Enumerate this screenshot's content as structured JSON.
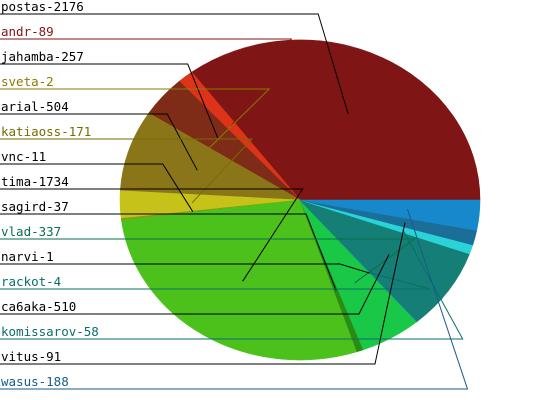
{
  "chart_data": {
    "type": "pie",
    "title": "",
    "slices": [
      {
        "name": "postas",
        "value": 2176,
        "label": "postas-2176",
        "color": "#7f1515",
        "label_color": "#000000"
      },
      {
        "name": "andr",
        "value": 89,
        "label": "andr-89",
        "color": "#dd3318",
        "label_color": "#7f1515"
      },
      {
        "name": "jahamba",
        "value": 257,
        "label": "jahamba-257",
        "color": "#7e2c18",
        "label_color": "#000000"
      },
      {
        "name": "sveta",
        "value": 2,
        "label": "sveta-2",
        "color": "#a8880a",
        "label_color": "#8c7a00"
      },
      {
        "name": "arial",
        "value": 504,
        "label": "arial-504",
        "color": "#8a7619",
        "label_color": "#000000"
      },
      {
        "name": "katiaoss",
        "value": 171,
        "label": "katiaoss-171",
        "color": "#c6c21a",
        "label_color": "#7a6a00"
      },
      {
        "name": "vnc",
        "value": 11,
        "label": "vnc-11",
        "color": "#8a9a10",
        "label_color": "#000000"
      },
      {
        "name": "tima",
        "value": 1734,
        "label": "tima-1734",
        "color": "#4cc11b",
        "label_color": "#000000"
      },
      {
        "name": "sagird",
        "value": 37,
        "label": "sagird-37",
        "color": "#2a8c14",
        "label_color": "#000000"
      },
      {
        "name": "vlad",
        "value": 337,
        "label": "vlad-337",
        "color": "#18c846",
        "label_color": "#0a6e4e"
      },
      {
        "name": "narvi",
        "value": 1,
        "label": "narvi-1",
        "color": "#0b9e7a",
        "label_color": "#000000"
      },
      {
        "name": "rackot",
        "value": 4,
        "label": "rackot-4",
        "color": "#1bb7a3",
        "label_color": "#0a6e6a"
      },
      {
        "name": "ca6aka",
        "value": 510,
        "label": "ca6aka-510",
        "color": "#157e76",
        "label_color": "#000000"
      },
      {
        "name": "komissarov",
        "value": 58,
        "label": "komissarov-58",
        "color": "#2ad3d8",
        "label_color": "#0a6e6a"
      },
      {
        "name": "vitus",
        "value": 91,
        "label": "vitus-91",
        "color": "#1a6e97",
        "label_color": "#000000"
      },
      {
        "name": "wasus",
        "value": 188,
        "label": "wasus-188",
        "color": "#1788cc",
        "label_color": "#1a5a8a"
      }
    ]
  }
}
